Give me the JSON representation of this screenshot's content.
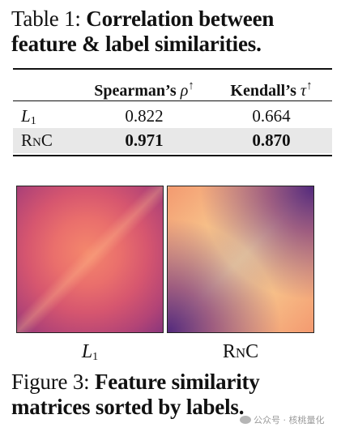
{
  "table": {
    "caption_prefix": "Table 1:",
    "caption_title": "Correlation between feature & label similarities.",
    "headers": {
      "spearman": "Spearman’s",
      "spearman_symbol": "ρ",
      "kendall": "Kendall’s",
      "kendall_symbol": "τ",
      "arrow": "↑"
    },
    "rows": [
      {
        "method_main": "L",
        "method_sub": "1",
        "spearman": "0.822",
        "kendall": "0.664"
      },
      {
        "method_r": "R",
        "method_n": "N",
        "method_c": "C",
        "spearman": "0.971",
        "kendall": "0.870"
      }
    ]
  },
  "figure": {
    "label_l1_main": "L",
    "label_l1_sub": "1",
    "label_rnc_r": "R",
    "label_rnc_n": "N",
    "label_rnc_c": "C",
    "caption_prefix": "Figure 3:",
    "caption_title": "Feature similarity matrices sorted by labels."
  },
  "watermark": "公众号 · 核桃量化"
}
